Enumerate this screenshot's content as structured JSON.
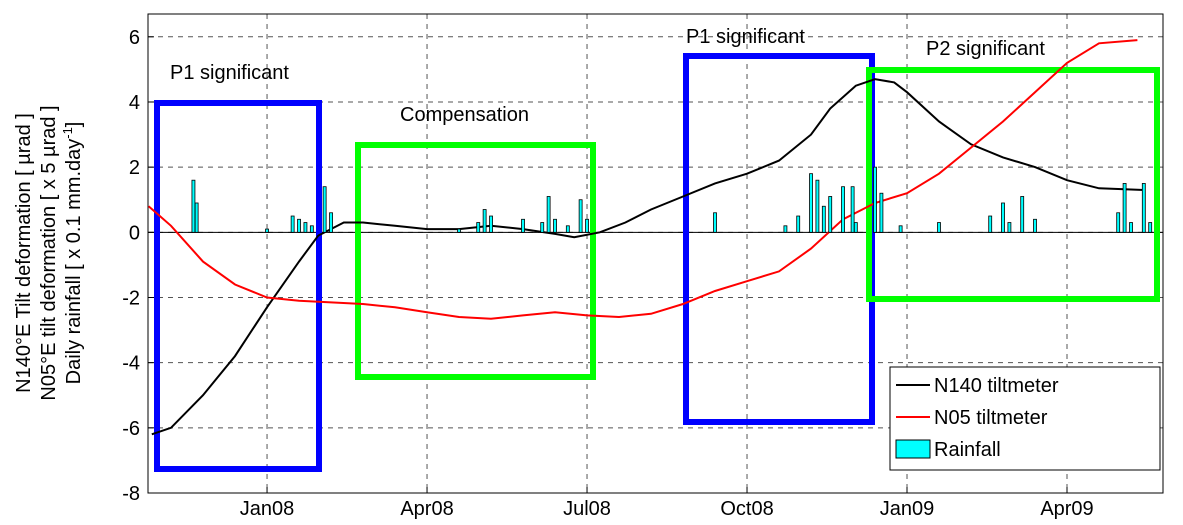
{
  "chart_data": {
    "type": "line",
    "ylabel": [
      "N140°E Tilt deformation [ µrad ]",
      "N05°E tilt deformation [ x 5 µrad ]",
      [
        "Daily rainfall [ x 0.1 mm.day",
        "-1",
        "]"
      ]
    ],
    "xlim": [
      2007.814,
      2009.4
    ],
    "xticks": [
      {
        "value": 2008.0,
        "label": "Jan08"
      },
      {
        "value": 2008.25,
        "label": "Apr08"
      },
      {
        "value": 2008.5,
        "label": "Jul08"
      },
      {
        "value": 2008.75,
        "label": "Oct08"
      },
      {
        "value": 2009.0,
        "label": "Jan09"
      },
      {
        "value": 2009.25,
        "label": "Apr09"
      }
    ],
    "ylim": [
      -8,
      6.7
    ],
    "yticks": [
      -8,
      -6,
      -4,
      -2,
      0,
      2,
      4,
      6
    ],
    "grid": true,
    "legend": "lower right",
    "annotations": [
      "P1 significant",
      "Compensation",
      "P1 significant",
      "P2 significant"
    ],
    "series": [
      {
        "name": "N140 tiltmeter",
        "color": "#000000",
        "x": [
          2007.82,
          2007.85,
          2007.9,
          2007.95,
          2008.0,
          2008.05,
          2008.08,
          2008.12,
          2008.15,
          2008.2,
          2008.25,
          2008.3,
          2008.35,
          2008.4,
          2008.45,
          2008.48,
          2008.52,
          2008.56,
          2008.6,
          2008.65,
          2008.7,
          2008.75,
          2008.8,
          2008.85,
          2008.88,
          2008.92,
          2008.95,
          2008.98,
          2009.0,
          2009.05,
          2009.1,
          2009.15,
          2009.2,
          2009.25,
          2009.3,
          2009.37
        ],
        "values": [
          -6.2,
          -6.0,
          -5.0,
          -3.8,
          -2.3,
          -0.9,
          -0.1,
          0.3,
          0.3,
          0.2,
          0.1,
          0.1,
          0.2,
          0.1,
          -0.05,
          -0.15,
          0.0,
          0.3,
          0.7,
          1.1,
          1.5,
          1.8,
          2.2,
          3.0,
          3.8,
          4.5,
          4.7,
          4.6,
          4.3,
          3.4,
          2.7,
          2.3,
          2.0,
          1.6,
          1.35,
          1.3
        ]
      },
      {
        "name": "N05 tiltmeter",
        "color": "#ff0000",
        "x": [
          2007.815,
          2007.85,
          2007.9,
          2007.95,
          2008.0,
          2008.05,
          2008.1,
          2008.15,
          2008.2,
          2008.25,
          2008.3,
          2008.35,
          2008.4,
          2008.45,
          2008.5,
          2008.55,
          2008.6,
          2008.65,
          2008.7,
          2008.75,
          2008.8,
          2008.85,
          2008.9,
          2008.95,
          2009.0,
          2009.05,
          2009.1,
          2009.15,
          2009.2,
          2009.25,
          2009.3,
          2009.36
        ],
        "values": [
          0.8,
          0.2,
          -0.9,
          -1.6,
          -2.0,
          -2.1,
          -2.15,
          -2.2,
          -2.3,
          -2.45,
          -2.6,
          -2.65,
          -2.55,
          -2.45,
          -2.55,
          -2.6,
          -2.5,
          -2.2,
          -1.8,
          -1.5,
          -1.2,
          -0.5,
          0.4,
          0.9,
          1.2,
          1.8,
          2.6,
          3.4,
          4.3,
          5.2,
          5.8,
          5.9
        ]
      },
      {
        "name": "Rainfall",
        "color": "#00ffff",
        "type": "bar",
        "x": [
          2007.885,
          2007.89,
          2008.0,
          2008.04,
          2008.05,
          2008.06,
          2008.07,
          2008.09,
          2008.1,
          2008.3,
          2008.33,
          2008.34,
          2008.35,
          2008.4,
          2008.43,
          2008.44,
          2008.45,
          2008.47,
          2008.49,
          2008.5,
          2008.7,
          2008.81,
          2008.83,
          2008.85,
          2008.86,
          2008.87,
          2008.88,
          2008.9,
          2008.915,
          2008.92,
          2008.95,
          2008.96,
          2008.99,
          2009.05,
          2009.13,
          2009.15,
          2009.16,
          2009.18,
          2009.2,
          2009.33,
          2009.34,
          2009.35,
          2009.37,
          2009.38
        ],
        "values": [
          1.6,
          0.9,
          0.1,
          0.5,
          0.4,
          0.3,
          0.2,
          1.4,
          0.6,
          0.1,
          0.3,
          0.7,
          0.5,
          0.4,
          0.3,
          1.1,
          0.4,
          0.2,
          1.0,
          0.4,
          0.6,
          0.2,
          0.5,
          1.8,
          1.6,
          0.8,
          1.1,
          1.4,
          1.4,
          0.3,
          2.0,
          1.2,
          0.2,
          0.3,
          0.5,
          0.9,
          0.3,
          1.1,
          0.4,
          0.6,
          1.5,
          0.3,
          1.5,
          0.3
        ]
      }
    ]
  }
}
